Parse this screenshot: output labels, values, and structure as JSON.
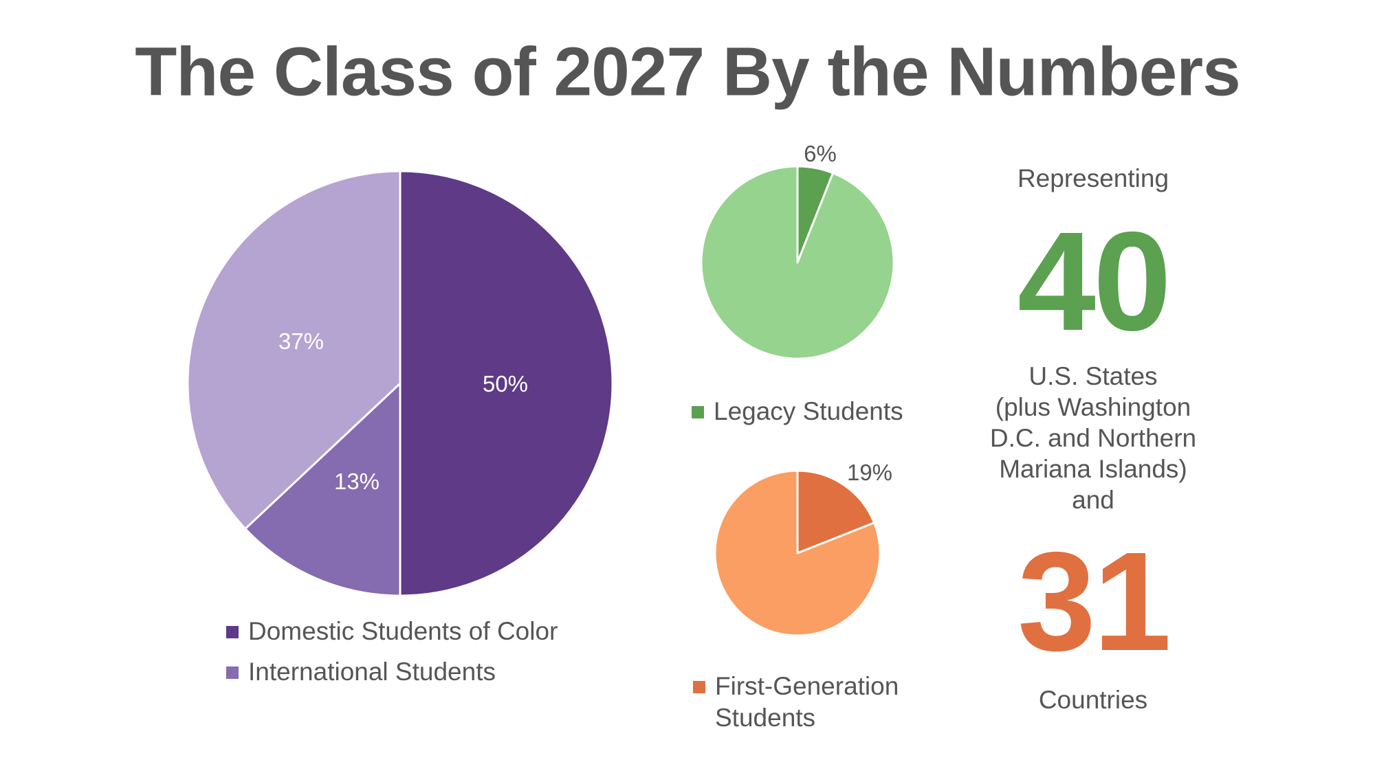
{
  "title": "The Class of 2027 By the Numbers",
  "chart_data": [
    {
      "type": "pie",
      "slices": [
        {
          "name": "Domestic Students of Color",
          "value": 50,
          "label": "50%",
          "color": "#5e3a87"
        },
        {
          "name": "",
          "value": 13,
          "label": "13%",
          "color": "#856bb0"
        },
        {
          "name": "",
          "value": 37,
          "label": "37%",
          "color": "#b5a3d2"
        }
      ],
      "legend": [
        {
          "label": "Domestic Students of Color",
          "color": "#5e3a87"
        },
        {
          "label": "International Students",
          "color": "#856bb0"
        }
      ],
      "legend_position": "bottom"
    },
    {
      "type": "pie",
      "slices": [
        {
          "name": "Legacy Students",
          "value": 6,
          "label": "6%",
          "color": "#5ba150"
        },
        {
          "name": "",
          "value": 94,
          "label": "",
          "color": "#95d38e"
        }
      ],
      "legend": [
        {
          "label": "Legacy Students",
          "color": "#5ba150"
        }
      ],
      "legend_position": "bottom"
    },
    {
      "type": "pie",
      "slices": [
        {
          "name": "First-Generation Students",
          "value": 19,
          "label": "19%",
          "color": "#e07040"
        },
        {
          "name": "",
          "value": 81,
          "label": "",
          "color": "#fb9e63"
        }
      ],
      "legend": [
        {
          "label": "First-Generation Students",
          "label_lines": [
            "First-Generation",
            "Students"
          ],
          "color": "#e07040"
        }
      ],
      "legend_position": "bottom"
    }
  ],
  "stats": {
    "representing": "Representing",
    "states_number": "40",
    "states_color": "#5ba150",
    "states_text": [
      "U.S. States",
      "(plus Washington",
      "D.C. and Northern",
      "Mariana Islands)",
      "and"
    ],
    "countries_number": "31",
    "countries_color": "#e07040",
    "countries_text": "Countries"
  }
}
